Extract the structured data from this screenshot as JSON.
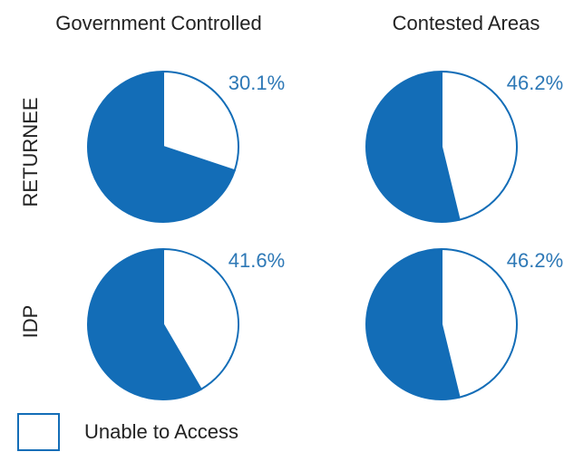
{
  "chart_data": {
    "type": "pie",
    "columns": [
      "Government Controlled",
      "Contested Areas"
    ],
    "rows": [
      "RETURNEE",
      "IDP"
    ],
    "panels": [
      {
        "row": "RETURNEE",
        "column": "Government Controlled",
        "value": 30.1,
        "label": "30.1%"
      },
      {
        "row": "RETURNEE",
        "column": "Contested Areas",
        "value": 46.2,
        "label": "46.2%"
      },
      {
        "row": "IDP",
        "column": "Government Controlled",
        "value": 41.6,
        "label": "41.6%"
      },
      {
        "row": "IDP",
        "column": "Contested Areas",
        "value": 46.2,
        "label": "46.2%"
      }
    ],
    "legend": {
      "label": "Unable to Access",
      "placement": "bottom-left"
    },
    "colors": {
      "filled": "#136db7",
      "highlighted": "#ffffff",
      "label": "#2d78b6",
      "text": "#222222"
    }
  }
}
